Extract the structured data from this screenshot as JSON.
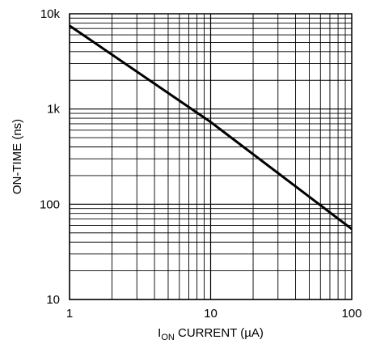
{
  "chart_data": {
    "type": "line",
    "xscale": "log",
    "yscale": "log",
    "xlim": [
      1,
      100
    ],
    "ylim": [
      10,
      10000
    ],
    "grid": true,
    "xticks": [
      {
        "value": 1,
        "label": "1"
      },
      {
        "value": 10,
        "label": "10"
      },
      {
        "value": 100,
        "label": "100"
      }
    ],
    "yticks": [
      {
        "value": 10,
        "label": "10"
      },
      {
        "value": 100,
        "label": "100"
      },
      {
        "value": 1000,
        "label": "1k"
      },
      {
        "value": 10000,
        "label": "10k"
      }
    ],
    "xlabel": {
      "main": "I",
      "subscript": "ON",
      "rest": " CURRENT (µA)"
    },
    "ylabel": "ON-TIME (ns)",
    "series": [
      {
        "x": [
          1,
          10,
          100
        ],
        "y": [
          7500,
          730,
          55
        ]
      }
    ]
  }
}
